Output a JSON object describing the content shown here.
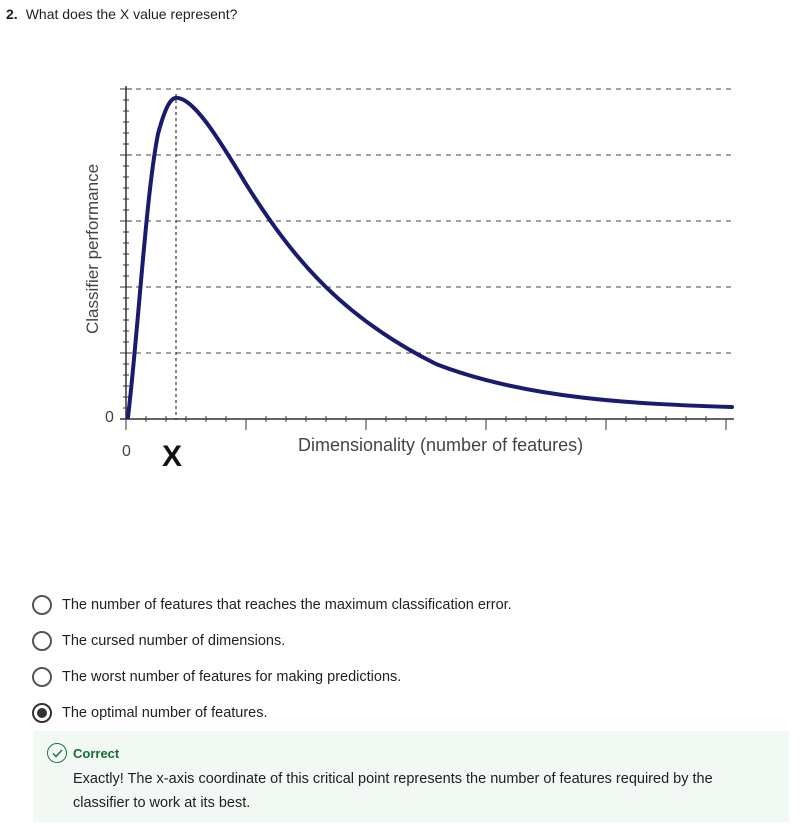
{
  "question": {
    "number": "2.",
    "text": "What does the X value represent?"
  },
  "figure": {
    "y_axis_label": "Classifier performance",
    "y_zero_label": "0",
    "x_zero_label": "0",
    "x_marker_label": "X",
    "x_axis_label": "Dimensionality (number of features)",
    "curve_color": "#1a1a6e"
  },
  "options": [
    {
      "label": "The number of features that reaches the maximum classification error.",
      "selected": false
    },
    {
      "label": "The cursed number of dimensions.",
      "selected": false
    },
    {
      "label": "The worst number of features for making predictions.",
      "selected": false
    },
    {
      "label": "The optimal number of features.",
      "selected": true
    }
  ],
  "feedback": {
    "status": "Correct",
    "icon": "check-circle-icon",
    "text": "Exactly! The x-axis coordinate of this critical point represents the number of features required by the classifier to work at its best.",
    "status_color": "#1a6b35",
    "background": "#f2f8f4"
  }
}
